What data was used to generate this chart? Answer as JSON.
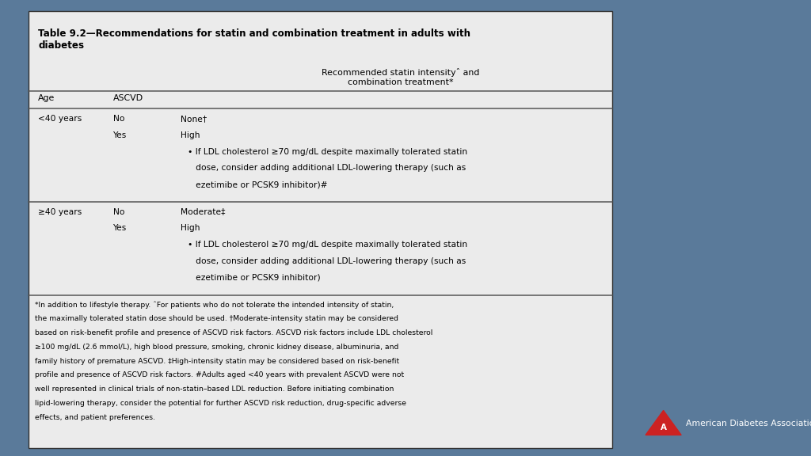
{
  "title_bold": "Table 9.2—Recommendations for statin and combination treatment in adults with\ndiabetes",
  "bg_color": "#5a7a9a",
  "table_border": "#333333",
  "line_color": "#555555",
  "col_header_center": "Recommended statin intensityˆ and\ncombination treatment*",
  "col_age": "Age",
  "col_ascvd": "ASCVD",
  "row1_age": "<40 years",
  "row1_no": "No",
  "row1_none": "None†",
  "row1_yes": "Yes",
  "row1_high": "High",
  "row1_bullet_line1": "• If LDL cholesterol ≥70 mg/dL despite maximally tolerated statin",
  "row1_bullet_line2": "   dose, consider adding additional LDL-lowering therapy (such as",
  "row1_bullet_line3": "   ezetimibe or PCSK9 inhibitor)#",
  "row2_age": "≥40 years",
  "row2_no": "No",
  "row2_moderate": "Moderate‡",
  "row2_yes": "Yes",
  "row2_high": "High",
  "row2_bullet_line1": "• If LDL cholesterol ≥70 mg/dL despite maximally tolerated statin",
  "row2_bullet_line2": "   dose, consider adding additional LDL-lowering therapy (such as",
  "row2_bullet_line3": "   ezetimibe or PCSK9 inhibitor)",
  "footnote_line1": "*In addition to lifestyle therapy. ˆFor patients who do not tolerate the intended intensity of statin,",
  "footnote_line2": "the maximally tolerated statin dose should be used. †Moderate-intensity statin may be considered",
  "footnote_line3": "based on risk-benefit profile and presence of ASCVD risk factors. ASCVD risk factors include LDL cholesterol",
  "footnote_line4": "≥100 mg/dL (2.6 mmol/L), high blood pressure, smoking, chronic kidney disease, albuminuria, and",
  "footnote_line5": "family history of premature ASCVD. ‡High-intensity statin may be considered based on risk-benefit",
  "footnote_line6": "profile and presence of ASCVD risk factors. #Adults aged <40 years with prevalent ASCVD were not",
  "footnote_line7": "well represented in clinical trials of non-statin–based LDL reduction. Before initiating combination",
  "footnote_line8": "lipid-lowering therapy, consider the potential for further ASCVD risk reduction, drug-specific adverse",
  "footnote_line9": "effects, and patient preferences.",
  "ada_text": "American Diabetes Association.",
  "ada_red": "#cc2222",
  "white_text": "#ffffff",
  "black_text": "#000000",
  "table_face": "#ebebeb",
  "tl": 0.035,
  "tr": 0.755,
  "tt": 0.975,
  "tb": 0.018
}
